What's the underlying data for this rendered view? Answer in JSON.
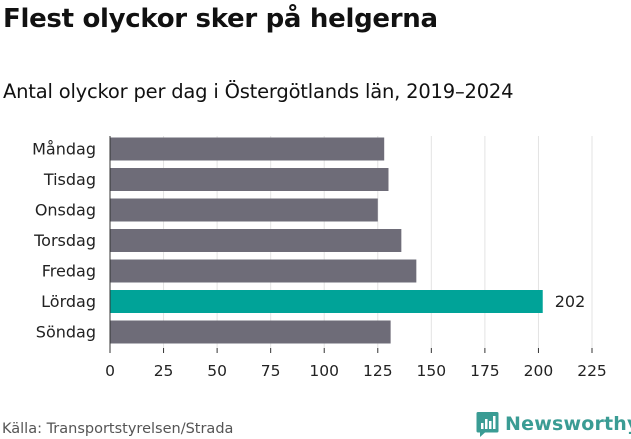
{
  "title": "Flest olyckor sker på helgerna",
  "subtitle": "Antal olyckor per dag i Östergötlands län, 2019–2024",
  "source": "Källa: Transportstyrelsen/Strada",
  "brand": {
    "name": "Newsworthy",
    "color": "#3a9c94",
    "icon": "newsworthy-logo-icon"
  },
  "chart_data": {
    "type": "bar",
    "orientation": "horizontal",
    "categories": [
      "Måndag",
      "Tisdag",
      "Onsdag",
      "Torsdag",
      "Fredag",
      "Lördag",
      "Söndag"
    ],
    "values": [
      128,
      130,
      125,
      136,
      143,
      202,
      131
    ],
    "highlight_index": 5,
    "data_labels": [
      {
        "index": 5,
        "text": "202"
      }
    ],
    "xlim": [
      0,
      225
    ],
    "xticks": [
      0,
      25,
      50,
      75,
      100,
      125,
      150,
      175,
      200,
      225
    ],
    "grid": true,
    "colors": {
      "bar": "#6e6c78",
      "highlight": "#00a398",
      "grid": "#e3e3e3",
      "axis": "#333333"
    }
  }
}
